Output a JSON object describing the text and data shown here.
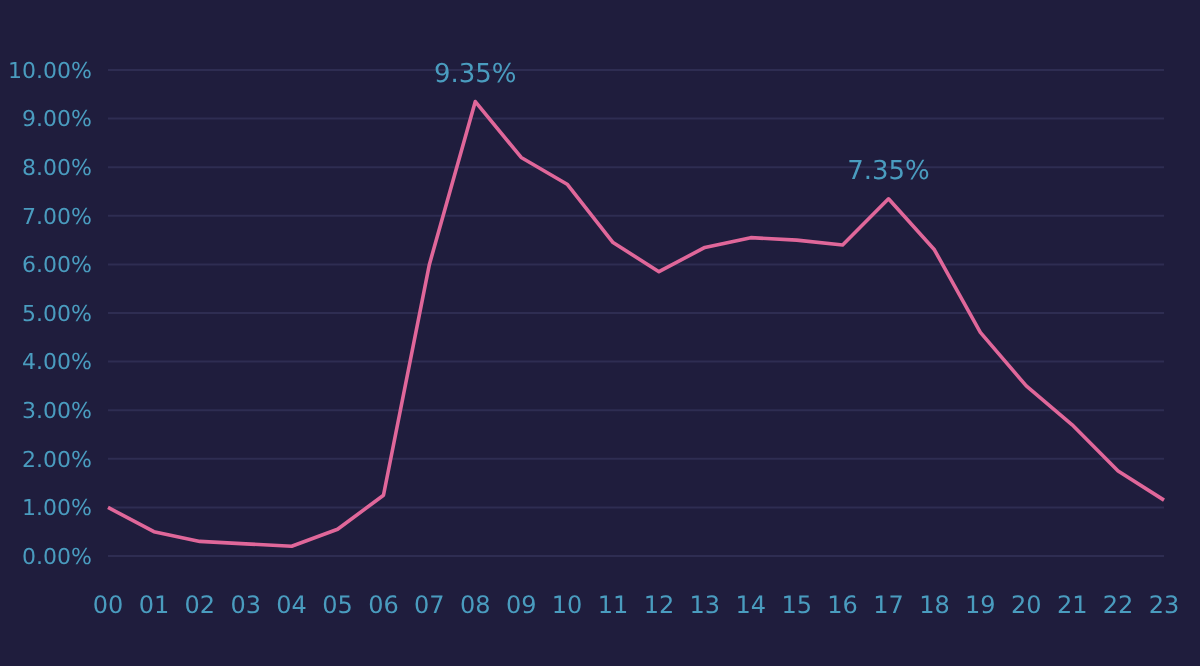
{
  "chart_data": {
    "type": "line",
    "categories": [
      "00",
      "01",
      "02",
      "03",
      "04",
      "05",
      "06",
      "07",
      "08",
      "09",
      "10",
      "11",
      "12",
      "13",
      "14",
      "15",
      "16",
      "17",
      "18",
      "19",
      "20",
      "21",
      "22",
      "23"
    ],
    "series": [
      {
        "color": "#e0679a",
        "values": [
          1.0,
          0.5,
          0.3,
          0.25,
          0.2,
          0.55,
          1.25,
          6.0,
          9.35,
          8.2,
          7.65,
          6.45,
          5.85,
          6.35,
          6.55,
          6.5,
          6.4,
          7.35,
          6.3,
          4.6,
          3.5,
          2.7,
          1.75,
          1.15
        ],
        "value_labels": [
          null,
          null,
          null,
          null,
          null,
          null,
          null,
          null,
          "9.35%",
          null,
          null,
          null,
          null,
          null,
          null,
          null,
          null,
          "7.35%",
          null,
          null,
          null,
          null,
          null,
          null
        ]
      }
    ],
    "ylim": [
      0,
      10
    ],
    "yticks": [
      {
        "value": 0,
        "label": "0.00%"
      },
      {
        "value": 1,
        "label": "1.00%"
      },
      {
        "value": 2,
        "label": "2.00%"
      },
      {
        "value": 3,
        "label": "3.00%"
      },
      {
        "value": 4,
        "label": "4.00%"
      },
      {
        "value": 5,
        "label": "5.00%"
      },
      {
        "value": 6,
        "label": "6.00%"
      },
      {
        "value": 7,
        "label": "7.00%"
      },
      {
        "value": 8,
        "label": "8.00%"
      },
      {
        "value": 9,
        "label": "9.00%"
      },
      {
        "value": 10,
        "label": "10.00%"
      }
    ],
    "grid": "y",
    "marker": "none",
    "line_style": "solid"
  }
}
